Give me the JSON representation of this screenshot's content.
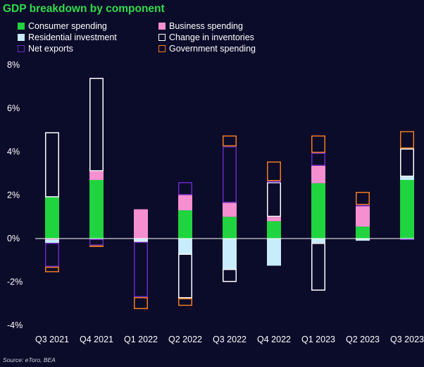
{
  "title": "GDP breakdown by component",
  "source": "Source: eToro, BEA",
  "colors": {
    "background": "#0b0b2a",
    "title": "#2fdc4a",
    "consumer": "#1fd43f",
    "business": "#f58fd0",
    "residential": "#c8ecfb",
    "inventories": "#ffffff",
    "net_exports": "#6a2bbf",
    "government": "#f07d1e",
    "axis": "#ffffff",
    "text": "#ffffff"
  },
  "legend": [
    {
      "key": "consumer",
      "label": "Consumer spending",
      "style": "fill"
    },
    {
      "key": "business",
      "label": "Business spending",
      "style": "fill"
    },
    {
      "key": "residential",
      "label": "Residential investment",
      "style": "fill"
    },
    {
      "key": "inventories",
      "label": "Change in inventories",
      "style": "outline"
    },
    {
      "key": "net_exports",
      "label": "Net exports",
      "style": "outline"
    },
    {
      "key": "government",
      "label": "Government spending",
      "style": "outline"
    }
  ],
  "chart_data": {
    "type": "bar",
    "stacked": true,
    "title": "GDP breakdown by component",
    "ylabel": "",
    "ylim": [
      -4,
      8
    ],
    "yticks": [
      "8%",
      "6%",
      "4%",
      "2%",
      "0%",
      "-2%",
      "-4%"
    ],
    "ytick_values": [
      8,
      6,
      4,
      2,
      0,
      -2,
      -4
    ],
    "grid": false,
    "legend_position": "top-left",
    "categories": [
      "Q3 2021",
      "Q4 2021",
      "Q1 2022",
      "Q2 2022",
      "Q3 2022",
      "Q4 2022",
      "Q1 2023",
      "Q2 2023",
      "Q3 2023"
    ],
    "series": [
      {
        "key": "consumer",
        "name": "Consumer spending",
        "style": "fill",
        "values": [
          1.9,
          2.7,
          0.0,
          1.3,
          1.0,
          0.8,
          2.55,
          0.55,
          2.7
        ]
      },
      {
        "key": "business",
        "name": "Business spending",
        "style": "fill",
        "values": [
          -0.05,
          0.4,
          1.35,
          0.7,
          0.65,
          0.2,
          0.8,
          0.95,
          0.0
        ]
      },
      {
        "key": "residential",
        "name": "Residential investment",
        "style": "fill",
        "values": [
          -0.15,
          -0.02,
          -0.1,
          -0.7,
          -1.4,
          -1.25,
          -0.2,
          -0.1,
          0.15
        ]
      },
      {
        "key": "inventories",
        "name": "Change in inventories",
        "style": "outline",
        "values": [
          3.0,
          4.3,
          -0.05,
          -2.05,
          -0.6,
          1.6,
          -2.2,
          0.0,
          1.3
        ]
      },
      {
        "key": "net_exports",
        "name": "Net exports",
        "style": "outline",
        "values": [
          -1.1,
          -0.3,
          -2.55,
          0.6,
          2.6,
          0.05,
          0.6,
          0.05,
          -0.05
        ]
      },
      {
        "key": "government",
        "name": "Government spending",
        "style": "outline",
        "values": [
          -0.25,
          -0.05,
          -0.55,
          -0.35,
          0.5,
          0.9,
          0.8,
          0.6,
          0.8
        ]
      }
    ]
  }
}
